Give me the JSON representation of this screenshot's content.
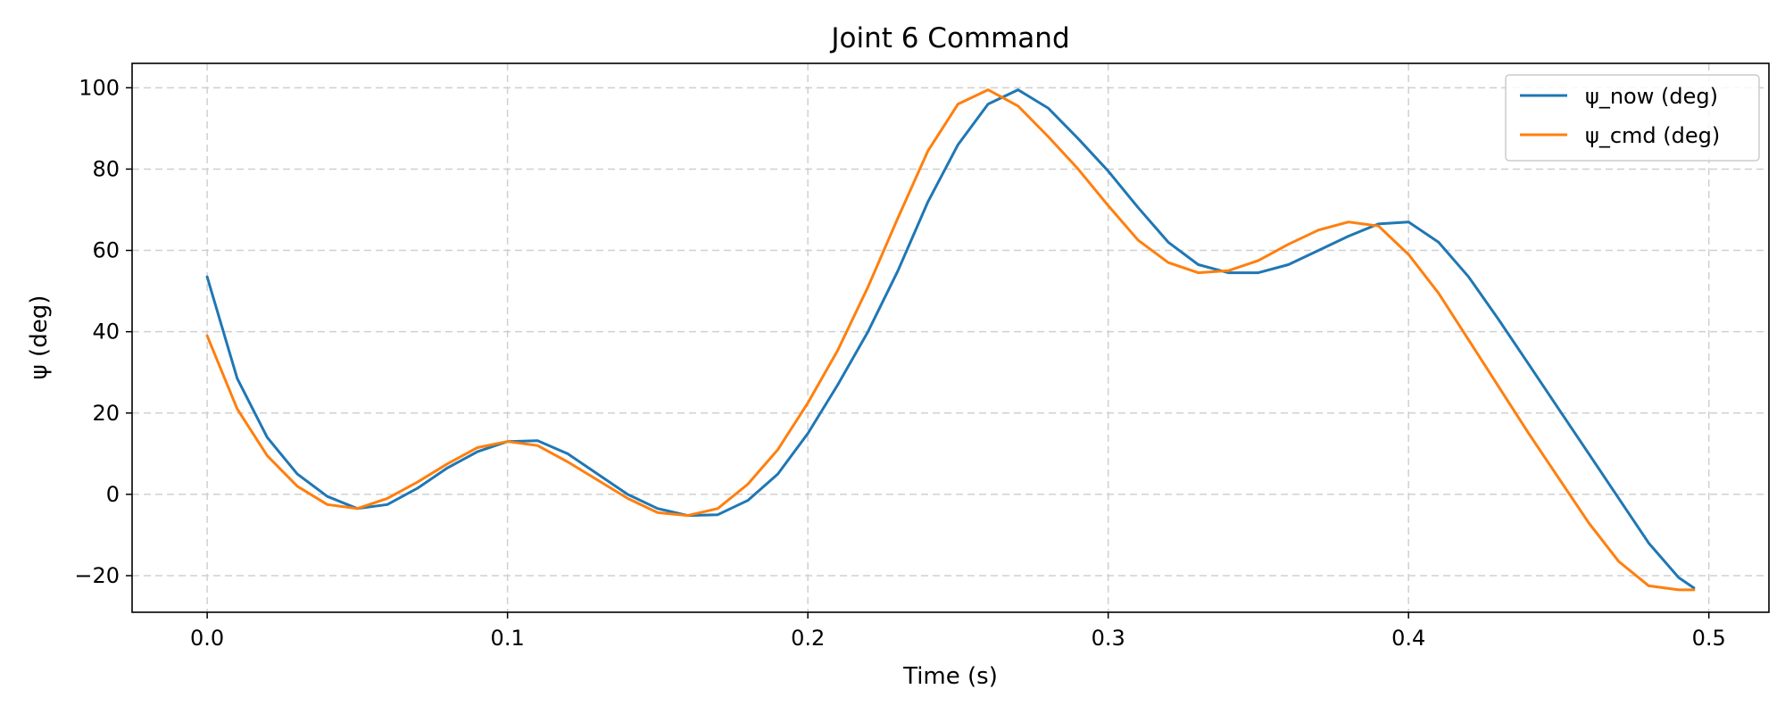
{
  "chart_data": {
    "type": "line",
    "title": "Joint 6 Command",
    "xlabel": "Time (s)",
    "ylabel": "ψ (deg)",
    "xlim": [
      -0.025,
      0.52
    ],
    "ylim": [
      -29,
      106
    ],
    "xticks": [
      0.0,
      0.1,
      0.2,
      0.3,
      0.4,
      0.5
    ],
    "xtick_labels": [
      "0.0",
      "0.1",
      "0.2",
      "0.3",
      "0.4",
      "0.5"
    ],
    "yticks": [
      -20,
      0,
      20,
      40,
      60,
      80,
      100
    ],
    "ytick_labels": [
      "−20",
      "0",
      "20",
      "40",
      "60",
      "80",
      "100"
    ],
    "grid": true,
    "legend_position": "top-right",
    "x": [
      0.0,
      0.01,
      0.02,
      0.03,
      0.04,
      0.05,
      0.06,
      0.07,
      0.08,
      0.09,
      0.1,
      0.11,
      0.12,
      0.13,
      0.14,
      0.15,
      0.16,
      0.17,
      0.18,
      0.19,
      0.2,
      0.21,
      0.22,
      0.23,
      0.24,
      0.25,
      0.26,
      0.27,
      0.28,
      0.29,
      0.3,
      0.31,
      0.32,
      0.33,
      0.34,
      0.35,
      0.36,
      0.37,
      0.38,
      0.39,
      0.4,
      0.41,
      0.42,
      0.43,
      0.44,
      0.45,
      0.46,
      0.47,
      0.48,
      0.49,
      0.495
    ],
    "series": [
      {
        "name": "ψ_now (deg)",
        "color": "#1f77b4",
        "values": [
          53.5,
          28.5,
          14.0,
          5.0,
          -0.5,
          -3.5,
          -2.5,
          1.5,
          6.5,
          10.5,
          13.0,
          13.2,
          10.0,
          5.0,
          0.0,
          -3.5,
          -5.2,
          -5.0,
          -1.5,
          5.0,
          15.0,
          27.0,
          40.0,
          55.0,
          72.0,
          86.0,
          96.0,
          99.5,
          95.0,
          87.5,
          79.5,
          70.5,
          62.0,
          56.5,
          54.5,
          54.5,
          56.5,
          60.0,
          63.5,
          66.5,
          67.0,
          62.0,
          53.5,
          43.0,
          32.0,
          21.0,
          10.0,
          -1.0,
          -12.0,
          -20.5,
          -23.0
        ]
      },
      {
        "name": "ψ_cmd (deg)",
        "color": "#ff7f0e",
        "values": [
          39.0,
          21.0,
          9.5,
          2.0,
          -2.5,
          -3.5,
          -1.0,
          3.0,
          7.5,
          11.5,
          13.0,
          12.0,
          8.0,
          3.5,
          -1.0,
          -4.5,
          -5.2,
          -3.5,
          2.5,
          11.0,
          22.5,
          35.5,
          51.0,
          68.0,
          84.5,
          96.0,
          99.5,
          95.5,
          88.0,
          80.0,
          71.0,
          62.5,
          57.0,
          54.5,
          55.0,
          57.5,
          61.5,
          65.0,
          67.0,
          66.0,
          59.0,
          49.5,
          38.0,
          26.5,
          15.0,
          4.0,
          -7.0,
          -16.5,
          -22.5,
          -23.5,
          -23.5
        ]
      }
    ]
  }
}
